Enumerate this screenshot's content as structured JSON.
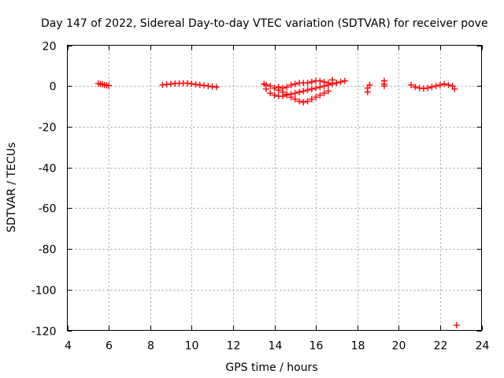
{
  "chart_data": {
    "type": "scatter",
    "title": "Day 147 of 2022, Sidereal Day-to-day VTEC variation (SDTVAR) for receiver pove",
    "xlabel": "GPS time / hours",
    "ylabel": "SDTVAR / TECUs",
    "xlim": [
      4,
      24
    ],
    "ylim": [
      -120,
      20
    ],
    "xticks": [
      "4",
      "6",
      "8",
      "10",
      "12",
      "14",
      "16",
      "18",
      "20",
      "22",
      "24"
    ],
    "yticks": [
      "20",
      "0",
      "-20",
      "-40",
      "-60",
      "-80",
      "-100",
      "-120"
    ],
    "grid": true,
    "marker": "+",
    "color": "#ff0000",
    "series": [
      {
        "name": "SDTVAR",
        "points": [
          [
            5.5,
            1.2
          ],
          [
            5.6,
            1.0
          ],
          [
            5.7,
            0.8
          ],
          [
            5.8,
            0.5
          ],
          [
            5.9,
            0.3
          ],
          [
            6.0,
            0.2
          ],
          [
            8.6,
            0.5
          ],
          [
            8.8,
            0.8
          ],
          [
            9.0,
            1.0
          ],
          [
            9.2,
            1.2
          ],
          [
            9.4,
            1.3
          ],
          [
            9.6,
            1.4
          ],
          [
            9.8,
            1.3
          ],
          [
            10.0,
            1.1
          ],
          [
            10.2,
            0.8
          ],
          [
            10.4,
            0.5
          ],
          [
            10.6,
            0.3
          ],
          [
            10.8,
            0.0
          ],
          [
            11.0,
            -0.3
          ],
          [
            11.2,
            -0.5
          ],
          [
            13.5,
            1.0
          ],
          [
            13.6,
            -1.5
          ],
          [
            13.8,
            -3.5
          ],
          [
            14.0,
            -4.5
          ],
          [
            14.2,
            -5.0
          ],
          [
            14.4,
            -5.0
          ],
          [
            14.6,
            -4.5
          ],
          [
            14.8,
            -4.0
          ],
          [
            15.0,
            -3.5
          ],
          [
            15.2,
            -3.0
          ],
          [
            15.4,
            -2.5
          ],
          [
            15.6,
            -2.0
          ],
          [
            15.8,
            -1.5
          ],
          [
            16.0,
            -1.0
          ],
          [
            16.2,
            -0.5
          ],
          [
            16.4,
            0.0
          ],
          [
            16.6,
            0.5
          ],
          [
            16.8,
            1.0
          ],
          [
            17.0,
            1.5
          ],
          [
            17.2,
            2.0
          ],
          [
            17.4,
            2.5
          ],
          [
            13.6,
            0.5
          ],
          [
            13.8,
            0.0
          ],
          [
            14.0,
            -1.0
          ],
          [
            14.2,
            -2.0
          ],
          [
            14.4,
            -3.0
          ],
          [
            14.6,
            -4.0
          ],
          [
            14.8,
            -5.5
          ],
          [
            15.0,
            -6.5
          ],
          [
            15.2,
            -7.5
          ],
          [
            15.4,
            -8.0
          ],
          [
            15.6,
            -7.5
          ],
          [
            15.8,
            -6.5
          ],
          [
            16.0,
            -5.5
          ],
          [
            16.2,
            -4.5
          ],
          [
            16.4,
            -3.5
          ],
          [
            16.6,
            -2.5
          ],
          [
            14.2,
            -0.5
          ],
          [
            14.4,
            -1.0
          ],
          [
            14.6,
            -0.5
          ],
          [
            14.8,
            0.5
          ],
          [
            15.0,
            1.0
          ],
          [
            15.2,
            1.5
          ],
          [
            15.4,
            1.5
          ],
          [
            15.6,
            1.5
          ],
          [
            15.8,
            2.0
          ],
          [
            16.0,
            2.5
          ],
          [
            16.2,
            2.5
          ],
          [
            16.4,
            2.0
          ],
          [
            16.6,
            1.5
          ],
          [
            16.8,
            3.0
          ],
          [
            17.0,
            1.5
          ],
          [
            18.5,
            -1.0
          ],
          [
            18.5,
            -3.0
          ],
          [
            18.6,
            0.5
          ],
          [
            19.3,
            1.0
          ],
          [
            19.3,
            2.5
          ],
          [
            19.3,
            0.0
          ],
          [
            20.6,
            0.5
          ],
          [
            20.8,
            -0.5
          ],
          [
            21.0,
            -1.0
          ],
          [
            21.2,
            -1.2
          ],
          [
            21.4,
            -1.0
          ],
          [
            21.6,
            -0.5
          ],
          [
            21.8,
            0.0
          ],
          [
            22.0,
            0.5
          ],
          [
            22.2,
            1.0
          ],
          [
            22.4,
            0.5
          ],
          [
            22.6,
            0.0
          ],
          [
            22.7,
            -1.5
          ],
          [
            22.8,
            -117.5
          ]
        ]
      }
    ]
  }
}
